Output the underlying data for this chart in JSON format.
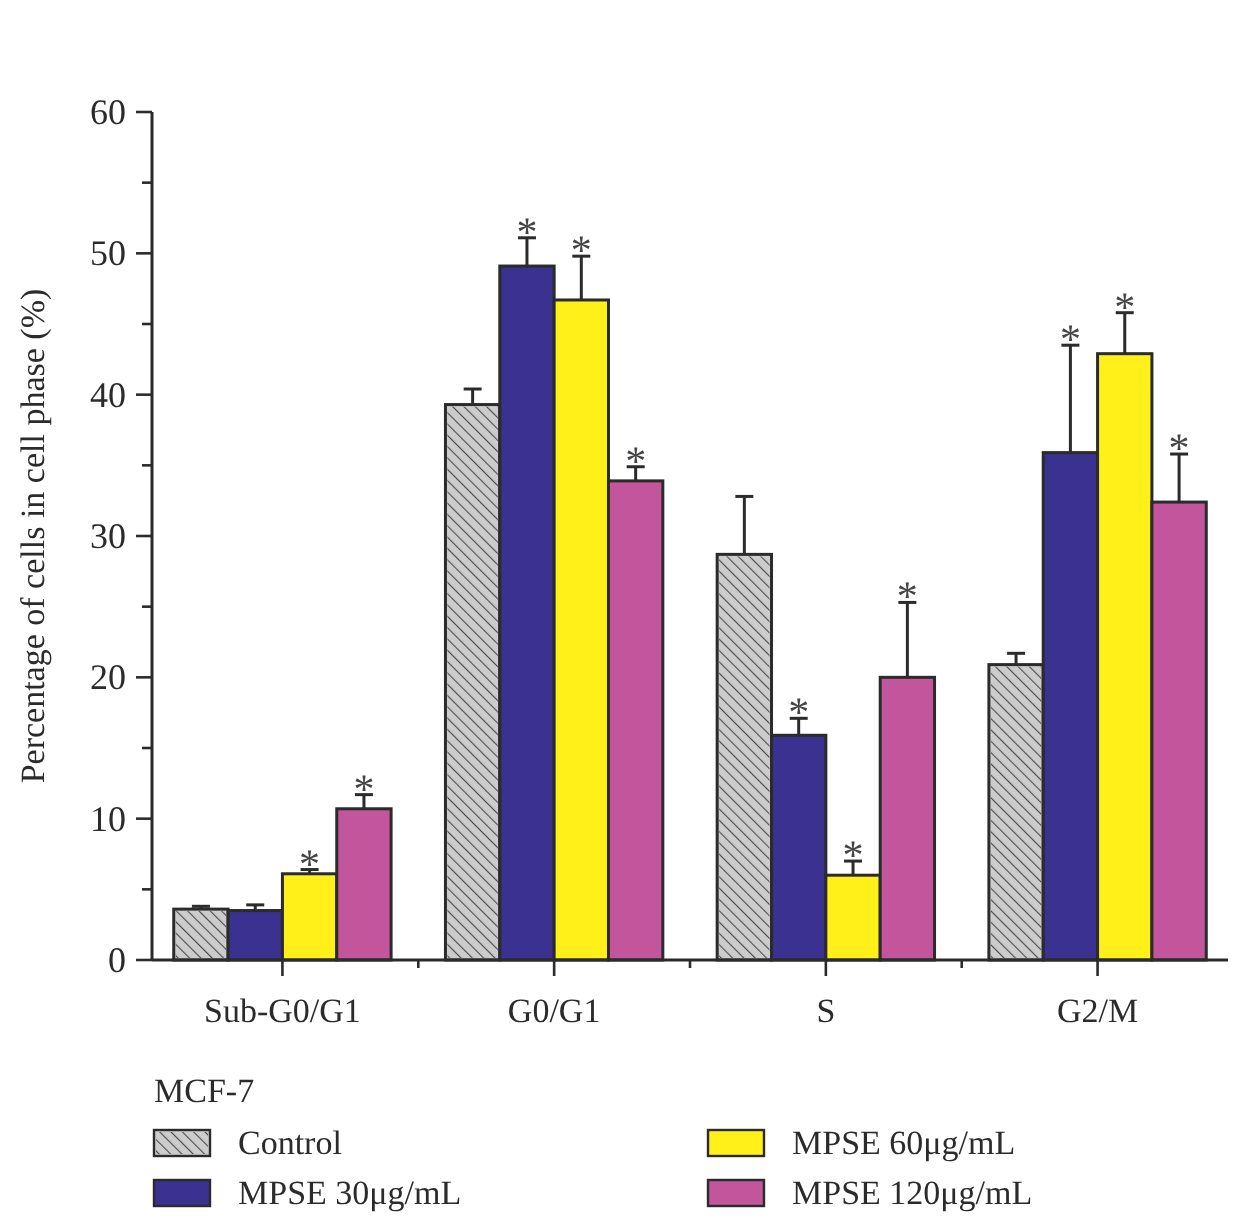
{
  "chart_data": {
    "type": "bar",
    "ylabel": "Percentage of cells in cell phase (%)",
    "legend_title": "MCF-7",
    "legend": "bottom",
    "categories": [
      "Sub-G0/G1",
      "G0/G1",
      "S",
      "G2/M"
    ],
    "series": [
      {
        "name": "Control",
        "color": "#cccccc",
        "values": [
          3.6,
          39.3,
          28.7,
          20.9
        ],
        "errors": [
          [
            3.6,
            3.8
          ],
          [
            39.3,
            40.4
          ],
          [
            28.7,
            32.8
          ],
          [
            20.9,
            21.7
          ]
        ],
        "value_labels": [
          null,
          null,
          null,
          null
        ]
      },
      {
        "name": "MPSE 30μg/mL",
        "color": "#3a3190",
        "values": [
          3.5,
          49.1,
          15.9,
          35.9
        ],
        "errors": [
          [
            3.5,
            3.9
          ],
          [
            49.1,
            51.1
          ],
          [
            15.9,
            17.1
          ],
          [
            35.9,
            43.5
          ]
        ],
        "value_labels": [
          null,
          "*",
          "*",
          "*"
        ]
      },
      {
        "name": "MPSE 60μg/mL",
        "color": "#fff01a",
        "values": [
          6.1,
          46.7,
          6.0,
          42.9
        ],
        "errors": [
          [
            6.1,
            6.4
          ],
          [
            46.7,
            49.8
          ],
          [
            6.0,
            7.0
          ],
          [
            42.9,
            45.8
          ]
        ],
        "value_labels": [
          "*",
          "*",
          "*",
          "*"
        ]
      },
      {
        "name": "MPSE 120μg/mL",
        "color": "#c2559c",
        "values": [
          10.7,
          33.9,
          20.0,
          32.4
        ],
        "errors": [
          [
            10.7,
            11.7
          ],
          [
            33.9,
            34.9
          ],
          [
            20.0,
            25.3
          ],
          [
            32.4,
            35.8
          ]
        ],
        "value_labels": [
          "*",
          "*",
          "*",
          "*"
        ]
      }
    ],
    "ylim": [
      0,
      60
    ],
    "yticks": [
      0,
      {
        "value": 5,
        "label": null
      },
      10,
      {
        "value": 15,
        "label": null
      },
      20,
      {
        "value": 25,
        "label": null
      },
      30,
      {
        "value": 35,
        "label": null
      },
      40,
      {
        "value": 45,
        "label": null
      },
      50,
      {
        "value": 55,
        "label": null
      },
      60
    ]
  }
}
